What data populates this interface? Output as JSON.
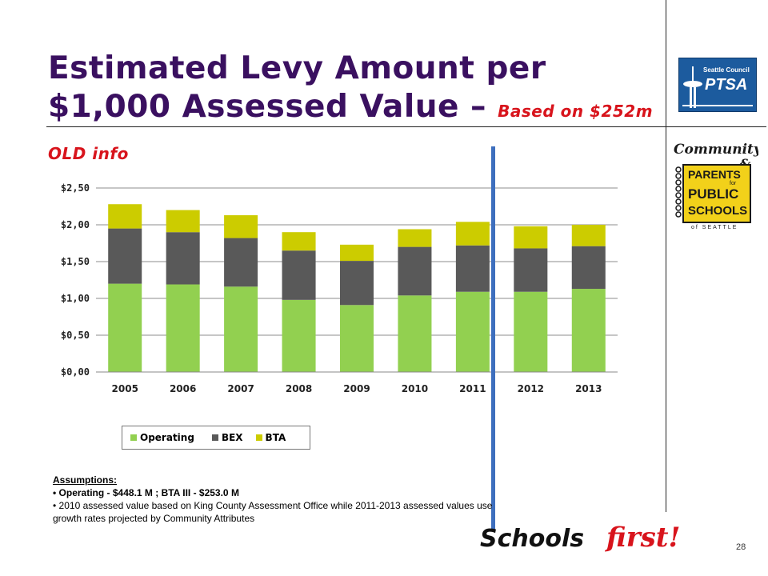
{
  "slide": {
    "title_main": "Estimated Levy Amount per $1,000 Assessed Value –",
    "title_sub": "Based on $252m OLD info",
    "page_number": "28"
  },
  "logos": {
    "ptsa_top": "Seattle Council",
    "ptsa_main": "PTSA",
    "cpps_line1": "Community",
    "cpps_amp": "&",
    "cpps_line2": "PARENTS",
    "cpps_for": "for",
    "cpps_line3": "PUBLIC",
    "cpps_line4": "SCHOOLS",
    "cpps_line5": "of SEATTLE",
    "schools_part1": "Schools",
    "schools_part2": "first!"
  },
  "assumptions": {
    "heading": "Assumptions:",
    "line1": "Operating  - $448.1 M ;   BTA III  - $253.0 M",
    "line2": "2010 assessed value based on King County Assessment Office while 2011-2013 assessed values use growth rates projected by Community Attributes"
  },
  "colors": {
    "operating": "#92d050",
    "bex": "#595959",
    "bta": "#cccc00",
    "marker": "#3e6fbe",
    "title": "#3a1060",
    "subtitle": "#d8141c"
  },
  "chart_data": {
    "type": "bar",
    "stacked": true,
    "categories": [
      "2005",
      "2006",
      "2007",
      "2008",
      "2009",
      "2010",
      "2011",
      "2012",
      "2013"
    ],
    "series": [
      {
        "name": "Operating",
        "values": [
          1.2,
          1.19,
          1.16,
          0.98,
          0.91,
          1.04,
          1.09,
          1.09,
          1.13
        ]
      },
      {
        "name": "BEX",
        "values": [
          0.75,
          0.71,
          0.66,
          0.67,
          0.6,
          0.66,
          0.63,
          0.59,
          0.58
        ]
      },
      {
        "name": "BTA",
        "values": [
          0.33,
          0.3,
          0.31,
          0.25,
          0.22,
          0.24,
          0.32,
          0.3,
          0.29
        ]
      }
    ],
    "y_ticks": [
      "$0,00",
      "$0,50",
      "$1,00",
      "$1,50",
      "$2,00",
      "$2,50"
    ],
    "ylim": [
      0,
      2.5
    ],
    "grid": true,
    "legend_position": "bottom-left",
    "vertical_marker_between": [
      "2011",
      "2012"
    ]
  }
}
